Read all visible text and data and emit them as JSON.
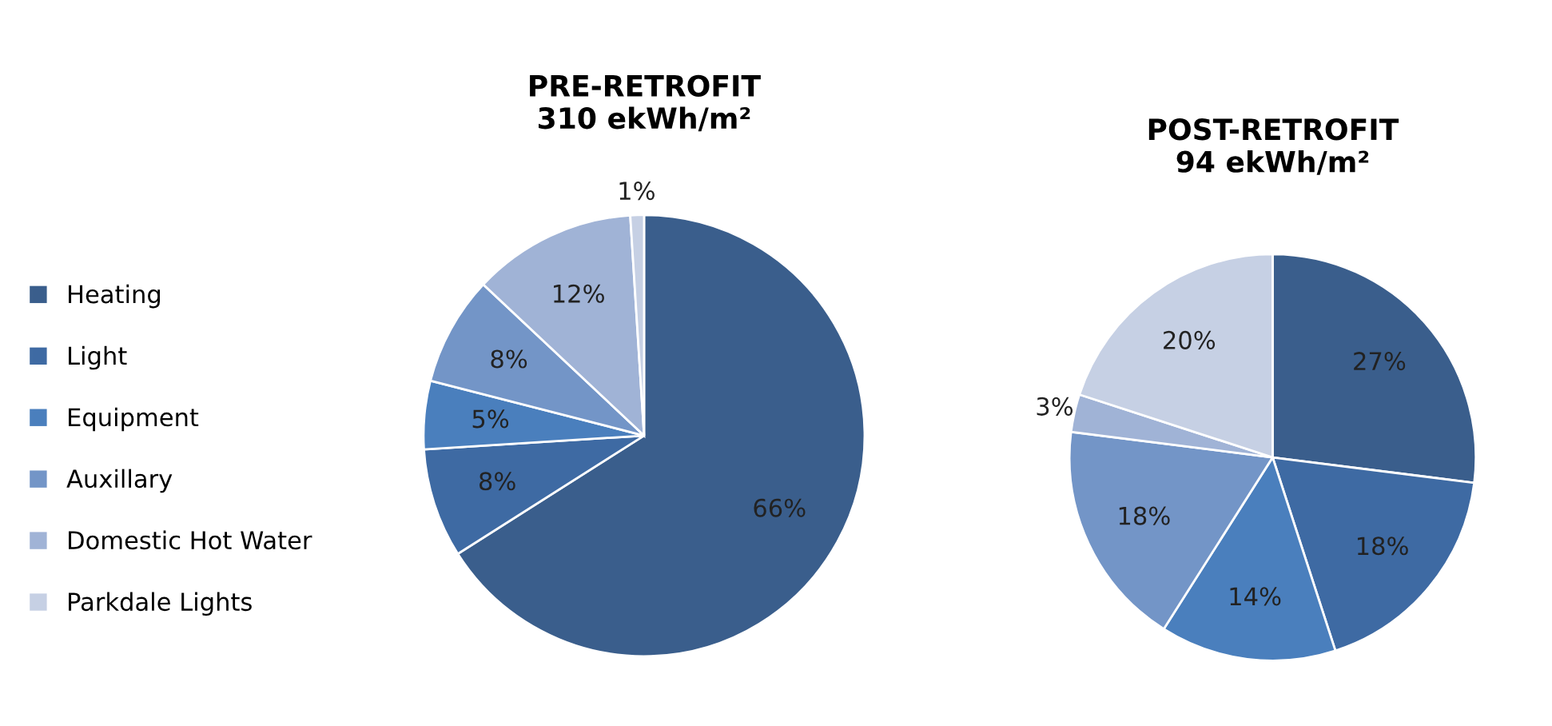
{
  "chart_data": [
    {
      "type": "pie",
      "title": "PRE-RETROFIT\n310 ekWh/m²",
      "categories": [
        "Heating",
        "Light",
        "Equipment",
        "Auxillary",
        "Domestic Hot Water",
        "Parkdale Lights"
      ],
      "values": [
        66,
        8,
        5,
        8,
        12,
        1
      ],
      "value_labels": [
        "66%",
        "8%",
        "5%",
        "8%",
        "12%",
        "1%"
      ],
      "colors": [
        "#3a5e8c",
        "#3e6aa3",
        "#4a7fbd",
        "#7395c7",
        "#a0b3d6",
        "#c6d0e4"
      ],
      "legend": "left"
    },
    {
      "type": "pie",
      "title": "POST-RETROFIT\n94 ekWh/m²",
      "categories": [
        null,
        null,
        null,
        null,
        null,
        null
      ],
      "values": [
        27,
        18,
        14,
        18,
        3,
        20
      ],
      "value_labels": [
        "27%",
        "18%",
        "14%",
        "18%",
        "3%",
        "20%"
      ],
      "colors": [
        "#3a5e8c",
        "#3e6aa3",
        "#4a7fbd",
        "#7395c7",
        "#a0b3d6",
        "#c6d0e4"
      ]
    }
  ]
}
